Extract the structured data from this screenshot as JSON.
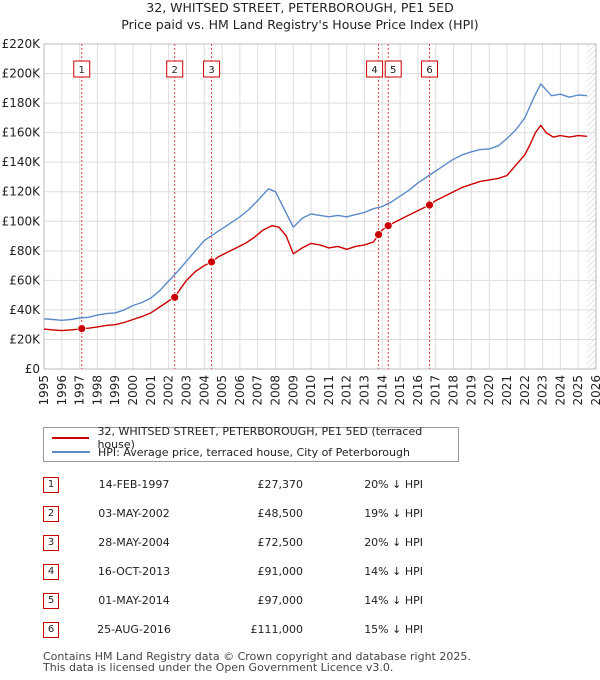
{
  "title_line1": "32, WHITSED STREET, PETERBOROUGH, PE1 5ED",
  "title_line2": "Price paid vs. HM Land Registry's House Price Index (HPI)",
  "colors": {
    "property": "#cc0000",
    "hpi": "#5b8ac9",
    "grid": "#dddddd",
    "marker_line": "#dd4444"
  },
  "legend": {
    "property_label": "32, WHITSED STREET, PETERBOROUGH, PE1 5ED (terraced house)",
    "hpi_label": "HPI: Average price, terraced house, City of Peterborough"
  },
  "chart_data": {
    "type": "line",
    "xlim": [
      1995,
      2026
    ],
    "ylim": [
      0,
      220000
    ],
    "y_ticks": [
      0,
      20000,
      40000,
      60000,
      80000,
      100000,
      120000,
      140000,
      160000,
      180000,
      200000,
      220000
    ],
    "y_tick_labels": [
      "£0",
      "£20K",
      "£40K",
      "£60K",
      "£80K",
      "£100K",
      "£120K",
      "£140K",
      "£160K",
      "£180K",
      "£200K",
      "£220K"
    ],
    "x_ticks": [
      1995,
      1996,
      1997,
      1998,
      1999,
      2000,
      2001,
      2002,
      2003,
      2004,
      2005,
      2006,
      2007,
      2008,
      2009,
      2010,
      2011,
      2012,
      2013,
      2014,
      2015,
      2016,
      2017,
      2018,
      2019,
      2020,
      2021,
      2022,
      2023,
      2024,
      2025,
      2026
    ],
    "series": [
      {
        "name": "HPI: Average price, terraced house, City of Peterborough",
        "x": [
          1995,
          1995.5,
          1996,
          1996.5,
          1997,
          1997.5,
          1998,
          1998.5,
          1999,
          1999.5,
          2000,
          2000.5,
          2001,
          2001.5,
          2002,
          2002.5,
          2003,
          2003.5,
          2004,
          2004.5,
          2005,
          2005.5,
          2006,
          2006.5,
          2007,
          2007.3,
          2007.6,
          2008,
          2008.5,
          2009,
          2009.5,
          2010,
          2010.5,
          2011,
          2011.5,
          2012,
          2012.5,
          2013,
          2013.5,
          2014,
          2014.5,
          2015,
          2015.5,
          2016,
          2016.5,
          2017,
          2017.5,
          2018,
          2018.5,
          2019,
          2019.5,
          2020,
          2020.5,
          2021,
          2021.5,
          2022,
          2022.3,
          2022.6,
          2022.9,
          2023.2,
          2023.5,
          2024,
          2024.5,
          2025,
          2025.5
        ],
        "values": [
          34000,
          33500,
          33000,
          33500,
          34500,
          35000,
          36500,
          37500,
          38000,
          40000,
          43000,
          45000,
          48000,
          53000,
          59500,
          66000,
          73000,
          80000,
          87000,
          91000,
          95000,
          99000,
          103000,
          108000,
          114000,
          118000,
          122000,
          120000,
          108000,
          96000,
          102000,
          105000,
          104000,
          103000,
          104000,
          103000,
          104500,
          106000,
          108500,
          110000,
          113000,
          117000,
          121000,
          126000,
          130000,
          134000,
          138000,
          142000,
          145000,
          147000,
          148500,
          149000,
          151000,
          156000,
          162000,
          170000,
          178000,
          186000,
          193000,
          189000,
          185000,
          186000,
          184000,
          185500,
          185000
        ]
      },
      {
        "name": "32, WHITSED STREET, PETERBOROUGH, PE1 5ED (terraced house)",
        "x": [
          1995,
          1995.5,
          1996,
          1996.5,
          1997,
          1997.12,
          1997.5,
          1998,
          1998.5,
          1999,
          1999.5,
          2000,
          2000.5,
          2001,
          2001.5,
          2002,
          2002.34,
          2002.7,
          2003,
          2003.5,
          2004,
          2004.41,
          2004.8,
          2005.3,
          2005.8,
          2006.3,
          2006.8,
          2007.3,
          2007.8,
          2008.2,
          2008.6,
          2009,
          2009.5,
          2010,
          2010.5,
          2011,
          2011.5,
          2012,
          2012.5,
          2013,
          2013.5,
          2013.79,
          2014,
          2014.33,
          2014.8,
          2015.3,
          2015.8,
          2016.3,
          2016.65,
          2017,
          2017.5,
          2018,
          2018.5,
          2019,
          2019.5,
          2020,
          2020.5,
          2021,
          2021.5,
          2022,
          2022.3,
          2022.6,
          2022.9,
          2023.2,
          2023.6,
          2024,
          2024.5,
          2025,
          2025.5
        ],
        "values": [
          27000,
          26500,
          26000,
          26500,
          27000,
          27370,
          27600,
          28500,
          29500,
          30000,
          31500,
          33500,
          35500,
          38000,
          42000,
          46000,
          48500,
          55000,
          60000,
          66000,
          70000,
          72500,
          76000,
          79000,
          82000,
          85000,
          89000,
          94000,
          97000,
          96000,
          90000,
          78000,
          82000,
          85000,
          84000,
          82000,
          83000,
          81000,
          83000,
          84000,
          86000,
          91000,
          94000,
          97000,
          100000,
          103000,
          106000,
          109000,
          111000,
          114000,
          117000,
          120000,
          123000,
          125000,
          127000,
          128000,
          129000,
          131000,
          138000,
          145000,
          152000,
          160000,
          165000,
          160000,
          157000,
          158000,
          157000,
          158000,
          157500
        ]
      }
    ],
    "markers": [
      {
        "label": "1",
        "year": 1997.12,
        "price": 27370
      },
      {
        "label": "2",
        "year": 2002.34,
        "price": 48500
      },
      {
        "label": "3",
        "year": 2004.41,
        "price": 72500
      },
      {
        "label": "4",
        "year": 2013.79,
        "price": 91000
      },
      {
        "label": "5",
        "year": 2014.33,
        "price": 97000
      },
      {
        "label": "6",
        "year": 2016.65,
        "price": 111000
      }
    ]
  },
  "sales": [
    {
      "num": "1",
      "date": "14-FEB-1997",
      "price": "£27,370",
      "hpi": "20% ↓ HPI"
    },
    {
      "num": "2",
      "date": "03-MAY-2002",
      "price": "£48,500",
      "hpi": "19% ↓ HPI"
    },
    {
      "num": "3",
      "date": "28-MAY-2004",
      "price": "£72,500",
      "hpi": "20% ↓ HPI"
    },
    {
      "num": "4",
      "date": "16-OCT-2013",
      "price": "£91,000",
      "hpi": "14% ↓ HPI"
    },
    {
      "num": "5",
      "date": "01-MAY-2014",
      "price": "£97,000",
      "hpi": "14% ↓ HPI"
    },
    {
      "num": "6",
      "date": "25-AUG-2016",
      "price": "£111,000",
      "hpi": "15% ↓ HPI"
    }
  ],
  "footer_line1": "Contains HM Land Registry data © Crown copyright and database right 2025.",
  "footer_line2": "This data is licensed under the Open Government Licence v3.0."
}
